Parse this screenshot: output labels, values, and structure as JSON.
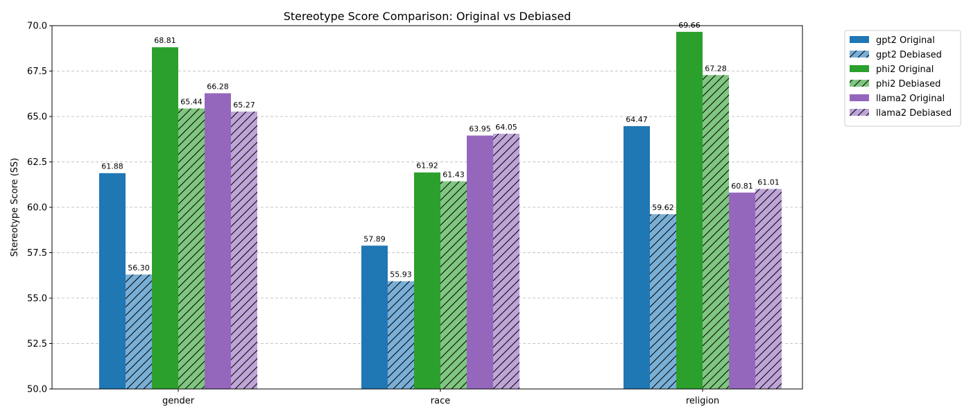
{
  "chart_data": {
    "type": "bar",
    "title": "Stereotype Score Comparison: Original vs Debiased",
    "xlabel": "",
    "ylabel": "Stereotype Score (SS)",
    "ylim": [
      50.0,
      70.0
    ],
    "yticks": [
      50.0,
      52.5,
      55.0,
      57.5,
      60.0,
      62.5,
      65.0,
      67.5,
      70.0
    ],
    "ytick_labels": [
      "50.0",
      "52.5",
      "55.0",
      "57.5",
      "60.0",
      "62.5",
      "65.0",
      "67.5",
      "70.0"
    ],
    "grid": "y-dashed",
    "legend_position": "outside-top-right",
    "categories": [
      "gender",
      "race",
      "religion"
    ],
    "series": [
      {
        "name": "gpt2 Original",
        "color": "#1f77b4",
        "hatch": false,
        "values": [
          61.88,
          57.89,
          64.47
        ],
        "labels": [
          "61.88",
          "57.89",
          "64.47"
        ]
      },
      {
        "name": "gpt2 Debiased",
        "color": "#79afd6",
        "hatch": true,
        "values": [
          56.3,
          55.93,
          59.62
        ],
        "labels": [
          "56.30",
          "55.93",
          "59.62"
        ]
      },
      {
        "name": "phi2 Original",
        "color": "#2ca02c",
        "hatch": false,
        "values": [
          68.81,
          61.92,
          69.66
        ],
        "labels": [
          "68.81",
          "61.92",
          "69.66"
        ]
      },
      {
        "name": "phi2 Debiased",
        "color": "#80c680",
        "hatch": true,
        "values": [
          65.44,
          61.43,
          67.28
        ],
        "labels": [
          "65.44",
          "61.43",
          "67.28"
        ]
      },
      {
        "name": "llama2 Original",
        "color": "#9467bd",
        "hatch": false,
        "values": [
          66.28,
          63.95,
          60.81
        ],
        "labels": [
          "66.28",
          "63.95",
          "60.81"
        ]
      },
      {
        "name": "llama2 Debiased",
        "color": "#bea4d7",
        "hatch": true,
        "values": [
          65.27,
          64.05,
          61.01
        ],
        "labels": [
          "65.27",
          "64.05",
          "61.01"
        ]
      }
    ]
  }
}
